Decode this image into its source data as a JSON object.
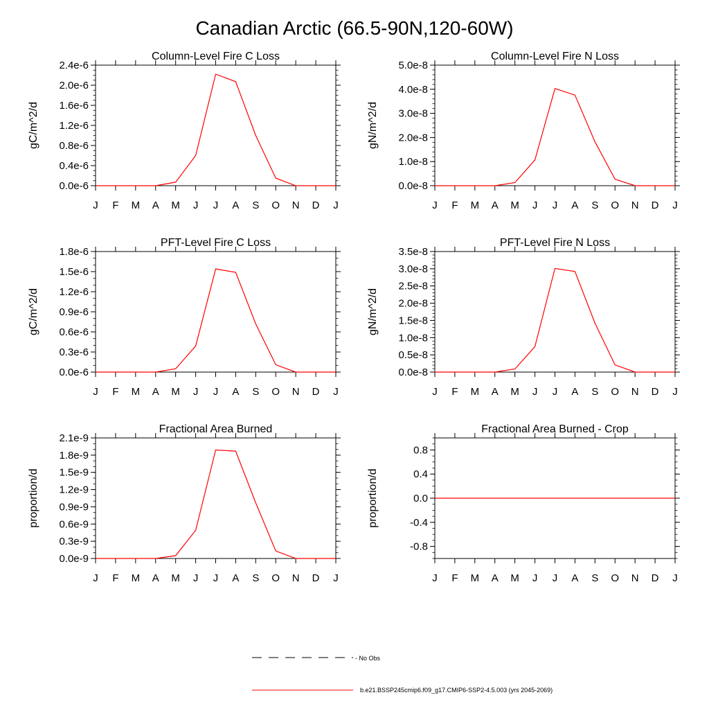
{
  "page": {
    "title": "Canadian Arctic (66.5-90N,120-60W)"
  },
  "colors": {
    "series": "#ff0000",
    "axis": "#000000",
    "obs": "#000000"
  },
  "legend": {
    "obs_label": "- No Obs",
    "model_label": "b.e21.BSSP245cmip6.f09_g17.CMIP6-SSP2-4.5.003 (yrs 2045-2069)"
  },
  "chart_data": [
    {
      "type": "line",
      "title": "Column-Level Fire C Loss",
      "ylabel": "gC/m^2/d",
      "categories": [
        "J",
        "F",
        "M",
        "A",
        "M",
        "J",
        "J",
        "A",
        "S",
        "O",
        "N",
        "D",
        "J"
      ],
      "ylim": [
        0,
        2.4e-06
      ],
      "yticks": [
        0,
        4e-07,
        8e-07,
        1.2e-06,
        1.6e-06,
        2e-06,
        2.4e-06
      ],
      "yticklabels": [
        "0.0e-6",
        "0.4e-6",
        "0.8e-6",
        "1.2e-6",
        "1.6e-6",
        "2.0e-6",
        "2.4e-6"
      ],
      "yminor": 1e-07,
      "series": [
        {
          "name": "b.e21.BSSP245cmip6.f09_g17.CMIP6-SSP2-4.5.003 (yrs 2045-2069)",
          "values": [
            0,
            0,
            0,
            0,
            7e-08,
            6e-07,
            2.22e-06,
            2.07e-06,
            1e-06,
            1.5e-07,
            0,
            0,
            0
          ]
        }
      ]
    },
    {
      "type": "line",
      "title": "Column-Level Fire N Loss",
      "ylabel": "gN/m^2/d",
      "categories": [
        "J",
        "F",
        "M",
        "A",
        "M",
        "J",
        "J",
        "A",
        "S",
        "O",
        "N",
        "D",
        "J"
      ],
      "ylim": [
        0,
        5e-08
      ],
      "yticks": [
        0,
        1e-08,
        2e-08,
        3e-08,
        4e-08,
        5e-08
      ],
      "yticklabels": [
        "0.0e-8",
        "1.0e-8",
        "2.0e-8",
        "3.0e-8",
        "4.0e-8",
        "5.0e-8"
      ],
      "yminor": 2e-09,
      "series": [
        {
          "name": "b.e21.BSSP245cmip6.f09_g17.CMIP6-SSP2-4.5.003 (yrs 2045-2069)",
          "values": [
            0,
            0,
            0,
            0,
            1.3e-09,
            1.07e-08,
            4.03e-08,
            3.76e-08,
            1.82e-08,
            2.7e-09,
            0,
            0,
            0
          ]
        }
      ]
    },
    {
      "type": "line",
      "title": "PFT-Level Fire C Loss",
      "ylabel": "gC/m^2/d",
      "categories": [
        "J",
        "F",
        "M",
        "A",
        "M",
        "J",
        "J",
        "A",
        "S",
        "O",
        "N",
        "D",
        "J"
      ],
      "ylim": [
        0,
        1.8e-06
      ],
      "yticks": [
        0,
        3e-07,
        6e-07,
        9e-07,
        1.2e-06,
        1.5e-06,
        1.8e-06
      ],
      "yticklabels": [
        "0.0e-6",
        "0.3e-6",
        "0.6e-6",
        "0.9e-6",
        "1.2e-6",
        "1.5e-6",
        "1.8e-6"
      ],
      "yminor": 1e-07,
      "series": [
        {
          "name": "b.e21.BSSP245cmip6.f09_g17.CMIP6-SSP2-4.5.003 (yrs 2045-2069)",
          "values": [
            0,
            0,
            0,
            0,
            5e-08,
            3.9e-07,
            1.54e-06,
            1.49e-06,
            7.2e-07,
            1.1e-07,
            0,
            0,
            0
          ]
        }
      ]
    },
    {
      "type": "line",
      "title": "PFT-Level Fire N Loss",
      "ylabel": "gN/m^2/d",
      "categories": [
        "J",
        "F",
        "M",
        "A",
        "M",
        "J",
        "J",
        "A",
        "S",
        "O",
        "N",
        "D",
        "J"
      ],
      "ylim": [
        0,
        3.5e-08
      ],
      "yticks": [
        0,
        5e-09,
        1e-08,
        1.5e-08,
        2e-08,
        2.5e-08,
        3e-08,
        3.5e-08
      ],
      "yticklabels": [
        "0.0e-8",
        "0.5e-8",
        "1.0e-8",
        "1.5e-8",
        "2.0e-8",
        "2.5e-8",
        "3.0e-8",
        "3.5e-8"
      ],
      "yminor": 1e-09,
      "series": [
        {
          "name": "b.e21.BSSP245cmip6.f09_g17.CMIP6-SSP2-4.5.003 (yrs 2045-2069)",
          "values": [
            0,
            0,
            0,
            0,
            9e-10,
            7.4e-09,
            3.01e-08,
            2.92e-08,
            1.42e-08,
            2.1e-09,
            0,
            0,
            0
          ]
        }
      ]
    },
    {
      "type": "line",
      "title": "Fractional Area Burned",
      "ylabel": "proportion/d",
      "categories": [
        "J",
        "F",
        "M",
        "A",
        "M",
        "J",
        "J",
        "A",
        "S",
        "O",
        "N",
        "D",
        "J"
      ],
      "ylim": [
        0,
        2.1e-09
      ],
      "yticks": [
        0,
        3e-10,
        6e-10,
        9e-10,
        1.2e-09,
        1.5e-09,
        1.8e-09,
        2.1e-09
      ],
      "yticklabels": [
        "0.0e-9",
        "0.3e-9",
        "0.6e-9",
        "0.9e-9",
        "1.2e-9",
        "1.5e-9",
        "1.8e-9",
        "2.1e-9"
      ],
      "yminor": 1e-10,
      "series": [
        {
          "name": "b.e21.BSSP245cmip6.f09_g17.CMIP6-SSP2-4.5.003 (yrs 2045-2069)",
          "values": [
            0,
            0,
            0,
            0,
            5e-11,
            4.9e-10,
            1.89e-09,
            1.87e-09,
            9.7e-10,
            1.3e-10,
            0,
            0,
            0
          ]
        }
      ]
    },
    {
      "type": "line",
      "title": "Fractional Area Burned - Crop",
      "ylabel": "proportion/d",
      "categories": [
        "J",
        "F",
        "M",
        "A",
        "M",
        "J",
        "J",
        "A",
        "S",
        "O",
        "N",
        "D",
        "J"
      ],
      "ylim": [
        -1.0,
        1.0
      ],
      "yticks": [
        -0.8,
        -0.4,
        0.0,
        0.4,
        0.8
      ],
      "yticklabels": [
        "-0.8",
        "-0.4",
        "0.0",
        "0.4",
        "0.8"
      ],
      "yminor": 0.1,
      "series": [
        {
          "name": "b.e21.BSSP245cmip6.f09_g17.CMIP6-SSP2-4.5.003 (yrs 2045-2069)",
          "values": [
            0,
            0,
            0,
            0,
            0,
            0,
            0,
            0,
            0,
            0,
            0,
            0,
            0
          ]
        }
      ]
    }
  ]
}
